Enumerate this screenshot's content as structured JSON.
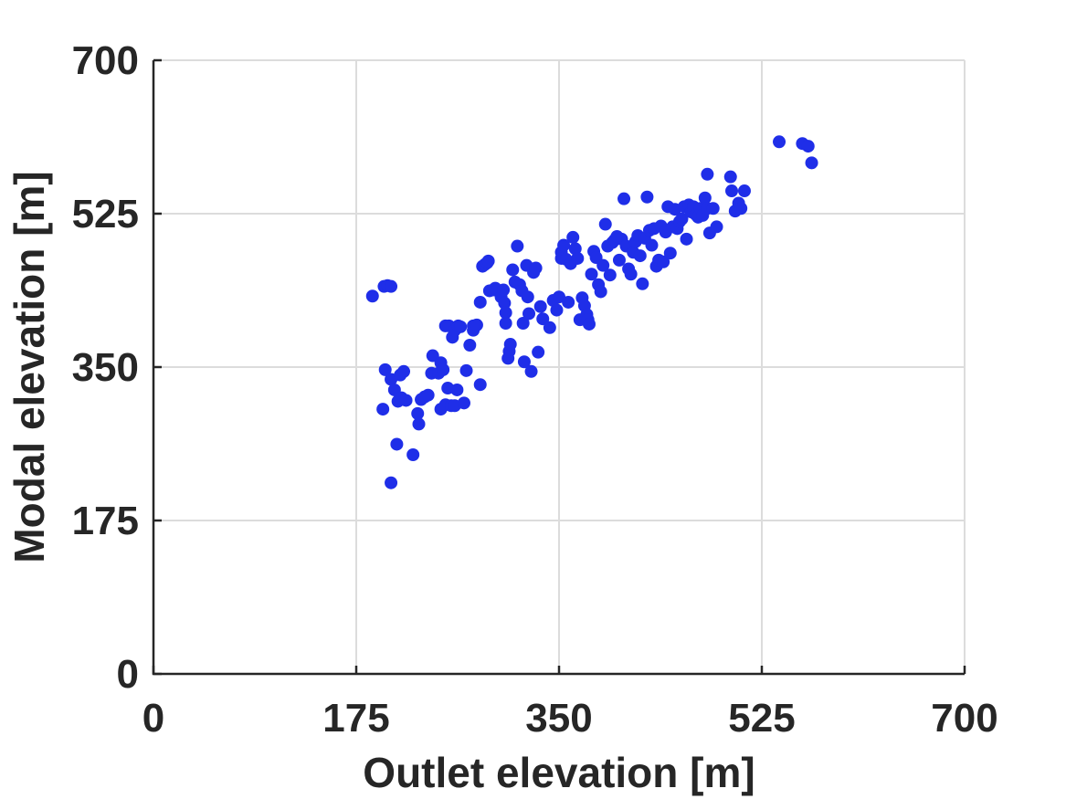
{
  "chart_data": {
    "type": "scatter",
    "title": "",
    "xlabel": "Outlet elevation [m]",
    "ylabel": "Modal elevation [m]",
    "xlim": [
      0,
      700
    ],
    "ylim": [
      0,
      700
    ],
    "xticks": [
      0,
      175,
      350,
      525,
      700
    ],
    "yticks": [
      0,
      175,
      350,
      525,
      700
    ],
    "x_tick_labels": [
      "0",
      "175",
      "350",
      "525",
      "700"
    ],
    "y_tick_labels": [
      "0",
      "175",
      "350",
      "525",
      "700"
    ],
    "grid": true,
    "marker_color": "#1f2ee8",
    "points": [
      [
        189,
        431
      ],
      [
        199,
        442
      ],
      [
        202,
        443
      ],
      [
        205,
        442
      ],
      [
        198,
        302
      ],
      [
        200,
        347
      ],
      [
        205,
        336
      ],
      [
        208,
        324
      ],
      [
        213,
        341
      ],
      [
        216,
        345
      ],
      [
        211,
        311
      ],
      [
        214,
        315
      ],
      [
        218,
        312
      ],
      [
        205,
        218
      ],
      [
        210,
        262
      ],
      [
        224,
        250
      ],
      [
        228,
        297
      ],
      [
        229,
        285
      ],
      [
        231,
        313
      ],
      [
        234,
        316
      ],
      [
        237,
        318
      ],
      [
        240,
        343
      ],
      [
        241,
        363
      ],
      [
        246,
        343
      ],
      [
        248,
        355
      ],
      [
        250,
        347
      ],
      [
        248,
        302
      ],
      [
        252,
        307
      ],
      [
        254,
        326
      ],
      [
        257,
        306
      ],
      [
        260,
        306
      ],
      [
        262,
        324
      ],
      [
        252,
        397
      ],
      [
        255,
        397
      ],
      [
        258,
        384
      ],
      [
        260,
        392
      ],
      [
        263,
        397
      ],
      [
        265,
        396
      ],
      [
        268,
        309
      ],
      [
        270,
        346
      ],
      [
        273,
        375
      ],
      [
        276,
        397
      ],
      [
        276,
        392
      ],
      [
        279,
        398
      ],
      [
        282,
        330
      ],
      [
        282,
        424
      ],
      [
        284,
        465
      ],
      [
        286,
        467
      ],
      [
        288,
        469
      ],
      [
        289,
        471
      ],
      [
        290,
        437
      ],
      [
        293,
        438
      ],
      [
        295,
        440
      ],
      [
        297,
        437
      ],
      [
        300,
        430
      ],
      [
        302,
        438
      ],
      [
        303,
        423
      ],
      [
        304,
        412
      ],
      [
        304,
        400
      ],
      [
        306,
        360
      ],
      [
        307,
        368
      ],
      [
        308,
        376
      ],
      [
        310,
        461
      ],
      [
        312,
        447
      ],
      [
        314,
        488
      ],
      [
        316,
        444
      ],
      [
        318,
        437
      ],
      [
        319,
        400
      ],
      [
        320,
        356
      ],
      [
        322,
        466
      ],
      [
        323,
        430
      ],
      [
        324,
        411
      ],
      [
        326,
        345
      ],
      [
        328,
        458
      ],
      [
        330,
        463
      ],
      [
        332,
        367
      ],
      [
        334,
        419
      ],
      [
        336,
        405
      ],
      [
        342,
        395
      ],
      [
        345,
        426
      ],
      [
        348,
        415
      ],
      [
        350,
        430
      ],
      [
        352,
        481
      ],
      [
        352,
        474
      ],
      [
        354,
        489
      ],
      [
        356,
        473
      ],
      [
        358,
        424
      ],
      [
        360,
        468
      ],
      [
        362,
        498
      ],
      [
        364,
        485
      ],
      [
        366,
        474
      ],
      [
        368,
        404
      ],
      [
        370,
        429
      ],
      [
        372,
        420
      ],
      [
        374,
        410
      ],
      [
        375,
        404
      ],
      [
        376,
        399
      ],
      [
        378,
        456
      ],
      [
        380,
        482
      ],
      [
        382,
        475
      ],
      [
        384,
        444
      ],
      [
        386,
        436
      ],
      [
        388,
        466
      ],
      [
        390,
        513
      ],
      [
        392,
        488
      ],
      [
        394,
        455
      ],
      [
        396,
        492
      ],
      [
        398,
        495
      ],
      [
        400,
        499
      ],
      [
        402,
        472
      ],
      [
        404,
        496
      ],
      [
        406,
        542
      ],
      [
        408,
        488
      ],
      [
        410,
        462
      ],
      [
        412,
        456
      ],
      [
        414,
        481
      ],
      [
        416,
        493
      ],
      [
        418,
        500
      ],
      [
        420,
        477
      ],
      [
        422,
        445
      ],
      [
        424,
        497
      ],
      [
        426,
        544
      ],
      [
        428,
        506
      ],
      [
        430,
        489
      ],
      [
        432,
        508
      ],
      [
        434,
        465
      ],
      [
        436,
        472
      ],
      [
        438,
        511
      ],
      [
        440,
        470
      ],
      [
        442,
        504
      ],
      [
        444,
        533
      ],
      [
        446,
        480
      ],
      [
        448,
        510
      ],
      [
        450,
        530
      ],
      [
        452,
        508
      ],
      [
        454,
        516
      ],
      [
        456,
        519
      ],
      [
        458,
        533
      ],
      [
        460,
        496
      ],
      [
        462,
        535
      ],
      [
        464,
        527
      ],
      [
        466,
        533
      ],
      [
        468,
        524
      ],
      [
        470,
        521
      ],
      [
        472,
        531
      ],
      [
        474,
        523
      ],
      [
        476,
        543
      ],
      [
        478,
        531
      ],
      [
        480,
        503
      ],
      [
        478,
        570
      ],
      [
        483,
        531
      ],
      [
        486,
        510
      ],
      [
        498,
        567
      ],
      [
        499,
        551
      ],
      [
        502,
        528
      ],
      [
        505,
        537
      ],
      [
        507,
        531
      ],
      [
        510,
        551
      ],
      [
        540,
        607
      ],
      [
        560,
        605
      ],
      [
        565,
        602
      ],
      [
        568,
        583
      ]
    ]
  }
}
